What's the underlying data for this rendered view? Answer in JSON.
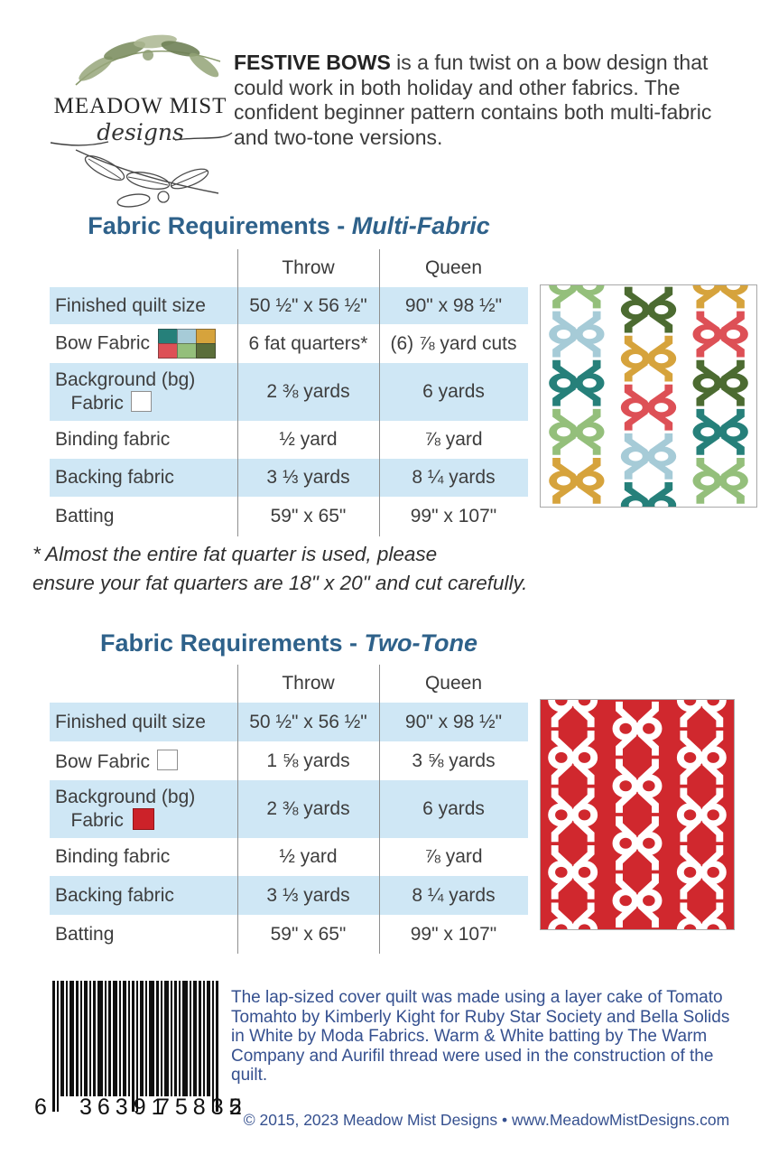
{
  "logo": {
    "wordmark": "Meadow Mist",
    "wordmark_display": "MEADOW MIST",
    "script": "designs"
  },
  "intro": {
    "lead": "FESTIVE BOWS",
    "text": " is a fun twist on a bow design that could work in both holiday and other fabrics. The confident beginner pattern contains both multi-fabric and two-tone versions."
  },
  "colors": {
    "title_blue": "#2e618a",
    "row_blue": "#cfe7f5",
    "denim_text": "#35508f",
    "two_tone_red_bg": "#d0282e",
    "palette": {
      "teal": "#26807a",
      "lightblue": "#a6cbd7",
      "gold": "#d6a33c",
      "red": "#dd5056",
      "lightgreen": "#94bf7b",
      "darkgreen": "#4c6b31",
      "white": "#ffffff"
    },
    "bow_swatch_grid": [
      "#26807a",
      "#a6cbd7",
      "#d6a33c",
      "#dd5056",
      "#94bf7b",
      "#5b6e3a"
    ],
    "bg_swatch_red": "#cc2229"
  },
  "tables": [
    {
      "title_main": "Fabric Requirements - ",
      "title_accent": "Multi-Fabric",
      "columns": [
        "Throw",
        "Queen"
      ],
      "rows": [
        {
          "label": "Finished quilt size",
          "label2": "",
          "swatch": "none",
          "throw": "50 ½\" x 56 ½\"",
          "queen": "90\" x 98 ½\"",
          "shaded": true
        },
        {
          "label": "Bow Fabric",
          "label2": "",
          "swatch": "multi-grid",
          "throw": "6 fat quarters*",
          "queen": "(6) ⅞ yard cuts",
          "shaded": false
        },
        {
          "label": "Background (bg)",
          "label2": "Fabric",
          "swatch": "white-square",
          "throw": "2 ⅜ yards",
          "queen": "6 yards",
          "shaded": true
        },
        {
          "label": "Binding fabric",
          "label2": "",
          "swatch": "none",
          "throw": "½ yard",
          "queen": "⅞ yard",
          "shaded": false
        },
        {
          "label": "Backing fabric",
          "label2": "",
          "swatch": "none",
          "throw": "3 ⅓ yards",
          "queen": "8 ¼ yards",
          "shaded": true
        },
        {
          "label": "Batting",
          "label2": "",
          "swatch": "none",
          "throw": "59\" x 65\"",
          "queen": "99\" x 107\"",
          "shaded": false
        }
      ]
    },
    {
      "title_main": "Fabric Requirements - ",
      "title_accent": "Two-Tone",
      "columns": [
        "Throw",
        "Queen"
      ],
      "rows": [
        {
          "label": "Finished quilt size",
          "label2": "",
          "swatch": "none",
          "throw": "50 ½\" x 56 ½\"",
          "queen": "90\" x 98 ½\"",
          "shaded": true
        },
        {
          "label": "Bow Fabric",
          "label2": "",
          "swatch": "white-square",
          "throw": "1 ⅝ yards",
          "queen": "3 ⅝ yards",
          "shaded": false
        },
        {
          "label": "Background (bg)",
          "label2": "Fabric",
          "swatch": "red-square",
          "throw": "2 ⅜ yards",
          "queen": "6 yards",
          "shaded": true
        },
        {
          "label": "Binding fabric",
          "label2": "",
          "swatch": "none",
          "throw": "½ yard",
          "queen": "⅞ yard",
          "shaded": false
        },
        {
          "label": "Backing fabric",
          "label2": "",
          "swatch": "none",
          "throw": "3 ⅓ yards",
          "queen": "8 ¼ yards",
          "shaded": true
        },
        {
          "label": "Batting",
          "label2": "",
          "swatch": "none",
          "throw": "59\" x 65\"",
          "queen": "99\" x 107\"",
          "shaded": false
        }
      ]
    }
  ],
  "footnote": {
    "line1": "* Almost the entire fat quarter is used, please",
    "line2": "ensure your fat quarters are 18\" x 20\" and cut carefully."
  },
  "quilts": [
    {
      "name": "multi-fabric-quilt-preview",
      "background": "#ffffff",
      "view_h": 308,
      "block_h": 68,
      "column_start": [
        -34,
        0,
        -34
      ],
      "bow_colors_by_column": [
        [
          "lightgreen",
          "lightblue",
          "teal",
          "lightgreen",
          "gold"
        ],
        [
          "darkgreen",
          "gold",
          "red",
          "lightblue",
          "teal"
        ],
        [
          "gold",
          "red",
          "darkgreen",
          "teal",
          "lightgreen"
        ]
      ]
    },
    {
      "name": "two-tone-quilt-preview",
      "background": "#d0282e",
      "view_h": 356,
      "block_h": 89,
      "column_start": [
        -44,
        0,
        -44
      ],
      "bow_colors_by_column": [
        [
          "white",
          "white",
          "white",
          "white",
          "white"
        ],
        [
          "white",
          "white",
          "white",
          "white"
        ],
        [
          "white",
          "white",
          "white",
          "white",
          "white"
        ]
      ]
    }
  ],
  "credits": {
    "text": "The lap-sized cover quilt was made using a layer cake of Tomato Tomahto by Kimberly Kight for Ruby Star Society and Bella Solids in White by Moda Fabrics.  Warm & White batting by The Warm Company and Aurifil thread were used in the construction of the quilt."
  },
  "barcode": {
    "digit_left": "6",
    "digits_group1": "36391",
    "digits_group2": "75835",
    "digit_right": "2"
  },
  "footer": {
    "copyright": "© 2015, 2023 Meadow Mist Designs • www.MeadowMistDesigns.com"
  }
}
